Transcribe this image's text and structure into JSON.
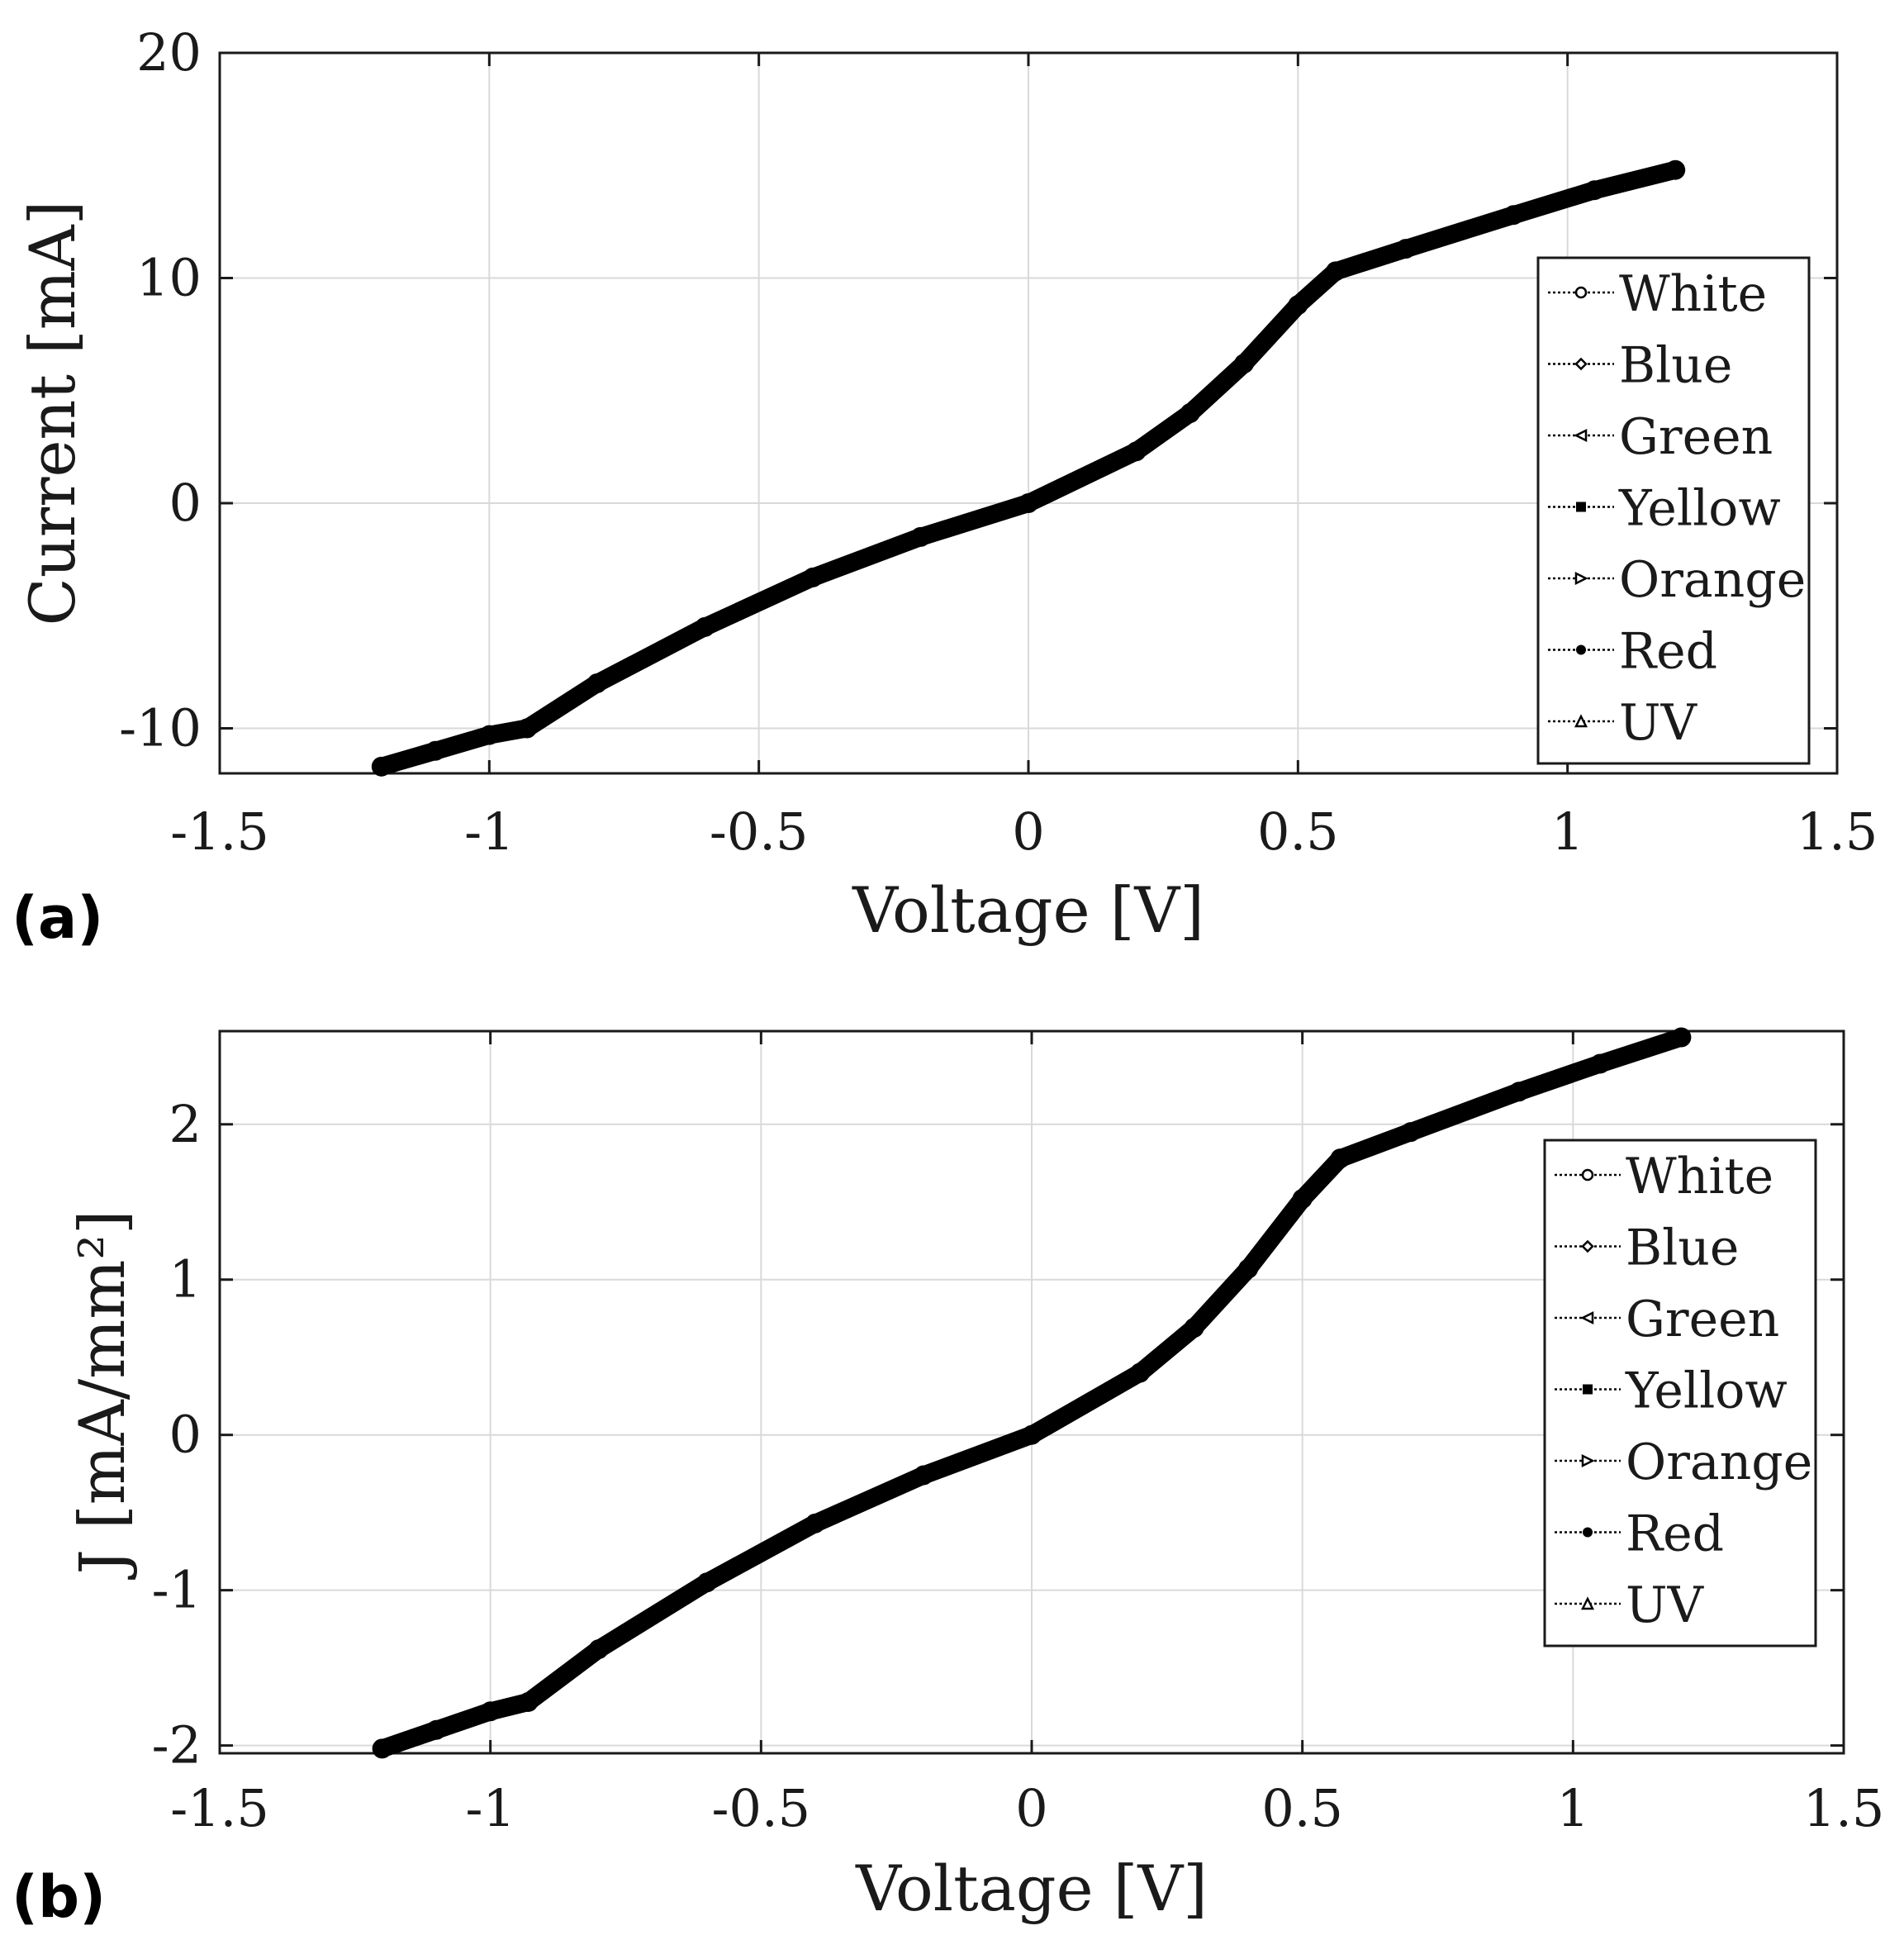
{
  "chart_data": [
    {
      "panel_label": "(a)",
      "type": "line",
      "xlabel": "Voltage [V]",
      "ylabel": "Current [mA]",
      "xlim": [
        -1.5,
        1.5
      ],
      "ylim": [
        -12,
        20
      ],
      "xticks": [
        -1.5,
        -1,
        -0.5,
        0,
        0.5,
        1,
        1.5
      ],
      "xtick_labels": [
        "-1.5",
        "-1",
        "-0.5",
        "0",
        "0.5",
        "1",
        "1.5"
      ],
      "yticks": [
        -10,
        0,
        10,
        20
      ],
      "ytick_labels": [
        "-10",
        "0",
        "10",
        "20"
      ],
      "grid": true,
      "legend_position": "right",
      "series": [
        {
          "name": "White",
          "marker": "circle"
        },
        {
          "name": "Blue",
          "marker": "diamond"
        },
        {
          "name": "Green",
          "marker": "triangle-left"
        },
        {
          "name": "Yellow",
          "marker": "square"
        },
        {
          "name": "Orange",
          "marker": "triangle-right"
        },
        {
          "name": "Red",
          "marker": "star"
        },
        {
          "name": "UV",
          "marker": "triangle-up"
        }
      ],
      "x": [
        -1.2,
        -1.1,
        -1.0,
        -0.93,
        -0.8,
        -0.6,
        -0.4,
        -0.2,
        0.0,
        0.2,
        0.3,
        0.4,
        0.5,
        0.57,
        0.7,
        0.9,
        1.05,
        1.2
      ],
      "y": [
        -11.7,
        -11.0,
        -10.3,
        -10.0,
        -8.0,
        -5.5,
        -3.3,
        -1.5,
        0.0,
        2.3,
        4.0,
        6.2,
        8.8,
        10.3,
        11.3,
        12.8,
        13.9,
        14.8
      ]
    },
    {
      "panel_label": "(b)",
      "type": "line",
      "xlabel": "Voltage [V]",
      "ylabel": "J [mA/mm²]",
      "xlim": [
        -1.5,
        1.5
      ],
      "ylim": [
        -2.05,
        2.6
      ],
      "xticks": [
        -1.5,
        -1,
        -0.5,
        0,
        0.5,
        1,
        1.5
      ],
      "xtick_labels": [
        "-1.5",
        "-1",
        "-0.5",
        "0",
        "0.5",
        "1",
        "1.5"
      ],
      "yticks": [
        -2,
        -1,
        0,
        1,
        2
      ],
      "ytick_labels": [
        "-2",
        "-1",
        "0",
        "1",
        "2"
      ],
      "grid": true,
      "legend_position": "right",
      "series": [
        {
          "name": "White",
          "marker": "circle"
        },
        {
          "name": "Blue",
          "marker": "diamond"
        },
        {
          "name": "Green",
          "marker": "triangle-left"
        },
        {
          "name": "Yellow",
          "marker": "square"
        },
        {
          "name": "Orange",
          "marker": "triangle-right"
        },
        {
          "name": "Red",
          "marker": "star"
        },
        {
          "name": "UV",
          "marker": "triangle-up"
        }
      ],
      "x": [
        -1.2,
        -1.1,
        -1.0,
        -0.93,
        -0.8,
        -0.6,
        -0.4,
        -0.2,
        0.0,
        0.2,
        0.3,
        0.4,
        0.5,
        0.57,
        0.7,
        0.9,
        1.05,
        1.2
      ],
      "y": [
        -2.02,
        -1.9,
        -1.78,
        -1.72,
        -1.38,
        -0.95,
        -0.57,
        -0.26,
        0.0,
        0.4,
        0.69,
        1.07,
        1.52,
        1.78,
        1.95,
        2.21,
        2.39,
        2.56
      ]
    }
  ]
}
